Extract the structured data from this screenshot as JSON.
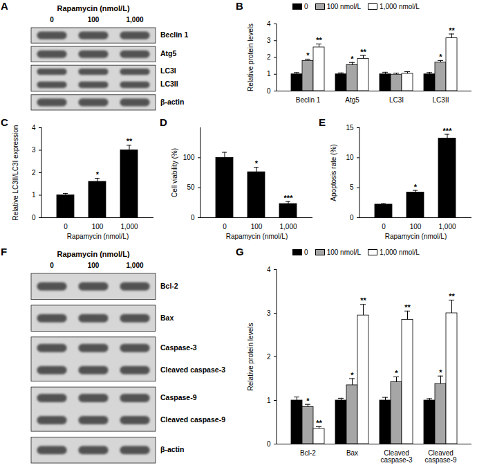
{
  "chart_data": [
    {
      "type": "blot",
      "panel": "A",
      "title": "Rapamycin (nmol/L)",
      "lanes": [
        "0",
        "100",
        "1,000"
      ],
      "rows": [
        [
          "Beclin 1"
        ],
        [
          "Atg5"
        ],
        [
          "LC3I",
          "LC3II"
        ],
        [
          "β-actin"
        ]
      ]
    },
    {
      "type": "bar",
      "panel": "B",
      "categories": [
        "Beclin 1",
        "Atg5",
        "LC3I",
        "LC3II"
      ],
      "series": [
        {
          "name": "0",
          "color": "#000000",
          "values": [
            1,
            1,
            1,
            1
          ],
          "errors": [
            0.1,
            0.08,
            0.12,
            0.1
          ],
          "annotations": [
            null,
            null,
            null,
            null
          ]
        },
        {
          "name": "100 nmol/L",
          "color": "#a6a6a6",
          "values": [
            1.8,
            1.55,
            0.98,
            1.7
          ],
          "errors": [
            0.1,
            0.15,
            0.08,
            0.12
          ],
          "annotations": [
            "*",
            "*",
            null,
            "*"
          ]
        },
        {
          "name": "1,000 nmol/L",
          "color": "#ffffff",
          "values": [
            2.6,
            1.92,
            1.03,
            3.15
          ],
          "errors": [
            0.2,
            0.2,
            0.12,
            0.25
          ],
          "annotations": [
            "**",
            "**",
            null,
            "**"
          ]
        }
      ],
      "ylabel": "Relative protein levels",
      "ylim": [
        0,
        4
      ],
      "yticks": [
        0,
        1,
        2,
        3,
        4
      ],
      "legend": "top"
    },
    {
      "type": "bar",
      "panel": "C",
      "categories": [
        "0",
        "100",
        "1,000"
      ],
      "values": [
        1,
        1.6,
        3.0
      ],
      "errors": [
        0.08,
        0.15,
        0.22
      ],
      "annotations": [
        null,
        "*",
        "**"
      ],
      "color": "#000000",
      "xlabel": "Rapamycin (nmol/L)",
      "ylabel": "Relative LC3II/LC3I expression",
      "ylim": [
        0,
        4
      ],
      "yticks": [
        0,
        1,
        2,
        3,
        4
      ]
    },
    {
      "type": "bar",
      "panel": "D",
      "categories": [
        "0",
        "100",
        "1,000"
      ],
      "values": [
        100,
        76,
        23
      ],
      "errors": [
        9,
        8,
        4
      ],
      "annotations": [
        null,
        "*",
        "***"
      ],
      "color": "#000000",
      "xlabel": "Rapamycin (nmol/L)",
      "ylabel": "Cell viability (%)",
      "ylim": [
        0,
        150
      ],
      "yticks": [
        0,
        50,
        100
      ]
    },
    {
      "type": "bar",
      "panel": "E",
      "categories": [
        "0",
        "100",
        "1,000"
      ],
      "values": [
        2.2,
        4.2,
        13.2
      ],
      "errors": [
        0.15,
        0.35,
        0.7
      ],
      "annotations": [
        null,
        "*",
        "***"
      ],
      "color": "#000000",
      "xlabel": "Rapamycin (nmol/L)",
      "ylabel": "Apoptosis rate (%)",
      "ylim": [
        0,
        15
      ],
      "yticks": [
        0,
        5,
        10,
        15
      ]
    },
    {
      "type": "blot",
      "panel": "F",
      "title": "Rapamycin (nmol/L)",
      "lanes": [
        "0",
        "100",
        "1,000"
      ],
      "rows": [
        [
          "Bcl-2"
        ],
        [
          "Bax"
        ],
        [
          "Caspase-3",
          "Cleaved caspase-3"
        ],
        [
          "Caspase-9",
          "Cleaved caspase-9"
        ],
        [
          "β-actin"
        ]
      ]
    },
    {
      "type": "bar",
      "panel": "G",
      "categories": [
        "Bcl-2",
        "Bax",
        "Cleaved caspase-3",
        "Cleaved caspase-9"
      ],
      "series": [
        {
          "name": "0",
          "color": "#000000",
          "values": [
            1,
            1,
            1,
            1
          ],
          "errors": [
            0.08,
            0.05,
            0.07,
            0.04
          ],
          "annotations": [
            null,
            null,
            null,
            null
          ]
        },
        {
          "name": "100 nmol/L",
          "color": "#a6a6a6",
          "values": [
            0.85,
            1.35,
            1.42,
            1.38
          ],
          "errors": [
            0.06,
            0.15,
            0.12,
            0.18
          ],
          "annotations": [
            "*",
            "*",
            "*",
            "*"
          ]
        },
        {
          "name": "1,000 nmol/L",
          "color": "#ffffff",
          "values": [
            0.35,
            2.95,
            2.85,
            3.0
          ],
          "errors": [
            0.05,
            0.25,
            0.2,
            0.3
          ],
          "annotations": [
            "**",
            "**",
            "**",
            "**"
          ]
        }
      ],
      "ylabel": "Relative protein levels",
      "ylim": [
        0,
        4
      ],
      "yticks": [
        0,
        1,
        2,
        3,
        4
      ],
      "legend": "top"
    }
  ]
}
